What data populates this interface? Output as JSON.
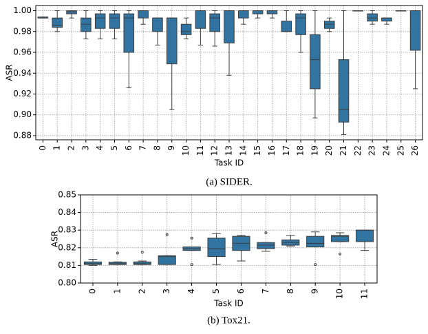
{
  "chart_data": [
    {
      "type": "box",
      "caption": "(a) SIDER.",
      "xlabel": "Task ID",
      "ylabel": "ASR",
      "color": "#3274a1",
      "grid": true,
      "categories": [
        "0",
        "1",
        "2",
        "3",
        "4",
        "5",
        "6",
        "7",
        "8",
        "9",
        "10",
        "11",
        "12",
        "13",
        "14",
        "15",
        "16",
        "17",
        "18",
        "19",
        "20",
        "21",
        "22",
        "23",
        "24",
        "25",
        "26"
      ],
      "whislo": [
        0.993,
        0.98,
        0.993,
        0.973,
        0.973,
        0.973,
        0.926,
        0.987,
        0.967,
        0.905,
        0.973,
        0.967,
        0.966,
        0.938,
        0.987,
        0.993,
        0.993,
        0.98,
        0.96,
        0.897,
        0.98,
        0.881,
        1.0,
        0.987,
        0.987,
        1.0,
        0.925
      ],
      "q1": [
        0.993,
        0.984,
        0.997,
        0.98,
        0.983,
        0.983,
        0.96,
        0.993,
        0.98,
        0.949,
        0.977,
        0.983,
        0.98,
        0.969,
        0.993,
        0.997,
        0.997,
        0.98,
        0.977,
        0.925,
        0.983,
        0.893,
        1.0,
        0.99,
        0.99,
        1.0,
        0.962
      ],
      "med": [
        0.993,
        0.986,
        0.999,
        0.987,
        0.993,
        0.993,
        0.993,
        1.0,
        0.993,
        0.993,
        0.98,
        1.0,
        0.993,
        1.0,
        1.0,
        1.0,
        1.0,
        0.98,
        0.993,
        0.953,
        0.987,
        0.905,
        1.0,
        0.993,
        0.993,
        1.0,
        1.0
      ],
      "q3": [
        0.994,
        0.993,
        1.0,
        0.993,
        0.997,
        0.997,
        0.997,
        1.0,
        0.993,
        0.993,
        0.987,
        1.0,
        0.997,
        1.0,
        1.0,
        1.0,
        1.0,
        0.99,
        0.997,
        0.977,
        0.99,
        0.953,
        1.0,
        0.997,
        0.993,
        1.0,
        1.0
      ],
      "whishi": [
        0.994,
        1.0,
        1.0,
        1.0,
        1.0,
        1.0,
        1.0,
        1.0,
        0.993,
        0.993,
        0.993,
        1.0,
        1.0,
        1.0,
        1.0,
        1.0,
        1.0,
        1.0,
        1.0,
        1.0,
        0.993,
        1.0,
        1.0,
        1.0,
        0.993,
        1.0,
        1.0
      ],
      "ylim": [
        0.876,
        1.005
      ],
      "yticks": [
        0.88,
        {
          "value": 0.9,
          "label": "0.90"
        },
        0.92,
        0.94,
        0.96,
        0.98,
        {
          "value": 1,
          "label": "1.00"
        }
      ]
    },
    {
      "type": "box",
      "caption": "(b) Tox21.",
      "xlabel": "Task ID",
      "ylabel": "ASR",
      "color": "#3274a1",
      "grid": true,
      "categories": [
        "0",
        "1",
        "2",
        "3",
        "4",
        "5",
        "6",
        "7",
        "8",
        "9",
        "10",
        "11"
      ],
      "whislo": [
        0.81,
        0.8105,
        0.8105,
        0.8105,
        0.8185,
        0.8105,
        0.8125,
        0.818,
        0.821,
        0.8205,
        0.8235,
        0.8185
      ],
      "q1": [
        0.8105,
        0.8105,
        0.8105,
        0.8105,
        0.8185,
        0.815,
        0.8185,
        0.8195,
        0.8215,
        0.8205,
        0.8235,
        0.8235
      ],
      "med": [
        0.811,
        0.811,
        0.811,
        0.815,
        0.8195,
        0.8195,
        0.8225,
        0.8215,
        0.823,
        0.8225,
        0.8265,
        0.83
      ],
      "q3": [
        0.812,
        0.8118,
        0.812,
        0.8155,
        0.8205,
        0.8255,
        0.8265,
        0.823,
        0.8245,
        0.8265,
        0.827,
        0.83
      ],
      "whishi": [
        0.8135,
        0.812,
        0.8125,
        0.8155,
        0.8205,
        0.828,
        0.827,
        0.823,
        0.827,
        0.829,
        0.8285,
        0.83
      ],
      "fliers": [
        [],
        [
          0.817
        ],
        [
          0.8175
        ],
        [
          0.8275
        ],
        [
          0.8255,
          0.8105
        ],
        [],
        [],
        [
          0.8285
        ],
        [],
        [
          0.8105
        ],
        [
          0.8165
        ],
        []
      ],
      "ylim": [
        0.8,
        0.85
      ],
      "yticks": [
        {
          "value": 0.8,
          "label": "0.80"
        },
        0.81,
        0.82,
        0.83,
        0.84,
        0.85
      ]
    }
  ]
}
